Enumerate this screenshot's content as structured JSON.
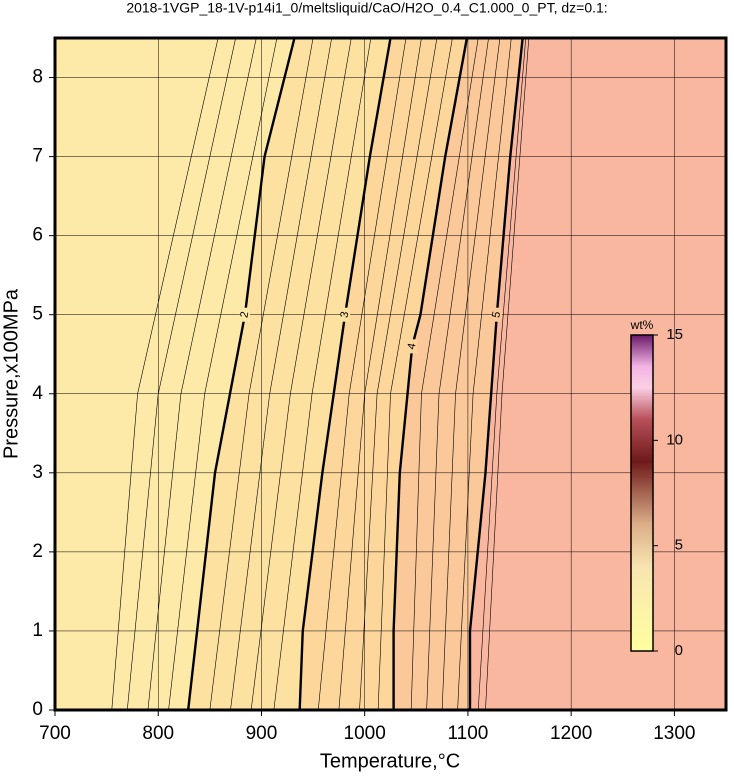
{
  "chart_data": {
    "type": "contour",
    "title": "2018-1VGP_18-1V-p14i1_0/meltsliquid/CaO/H2O_0.4_C1.000_0_PT, dz=0.1:",
    "x_label": "Temperature,°C",
    "y_label": "Pressure,x100MPa",
    "xlim": [
      700,
      1350
    ],
    "ylim": [
      0,
      8.5
    ],
    "xticks": [
      700,
      800,
      900,
      1000,
      1100,
      1200,
      1300
    ],
    "yticks": [
      0,
      1,
      2,
      3,
      4,
      5,
      6,
      7,
      8
    ],
    "grid": true,
    "background": "#f9b7a0",
    "contours": [
      {
        "level": 5,
        "fill": "#fbc899",
        "x": [
          1102,
          1102,
          1117,
          1128,
          1141,
          1153
        ],
        "y": [
          0,
          1,
          3,
          5,
          7,
          8.5
        ]
      },
      {
        "level": 4,
        "fill": "#fcd69a",
        "x": [
          1028,
          1028,
          1034,
          1046,
          1054,
          1078,
          1099
        ],
        "y": [
          0,
          1,
          3,
          4.6,
          5,
          7,
          8.5
        ]
      },
      {
        "level": 3,
        "fill": "#fde1a0",
        "x": [
          937,
          940,
          959,
          981,
          1005,
          1025
        ],
        "y": [
          0,
          1,
          3,
          5,
          7,
          8.5
        ]
      },
      {
        "level": 2,
        "fill": "#fde9a8",
        "x": [
          829,
          855,
          884,
          903,
          932
        ],
        "y": [
          0,
          3,
          5,
          7,
          8.5
        ]
      },
      {
        "level": 1.2,
        "x": [
          755,
          780,
          858
        ],
        "y": [
          0,
          4,
          8.5
        ]
      },
      {
        "level": 1.4,
        "x": [
          770,
          800,
          875
        ],
        "y": [
          0,
          4,
          8.5
        ]
      },
      {
        "level": 1.6,
        "x": [
          790,
          822,
          895
        ],
        "y": [
          0,
          4,
          8.5
        ]
      },
      {
        "level": 1.8,
        "x": [
          810,
          845,
          915
        ],
        "y": [
          0,
          4,
          8.5
        ]
      },
      {
        "level": 2.2,
        "x": [
          850,
          888,
          950
        ],
        "y": [
          0,
          4,
          8.5
        ]
      },
      {
        "level": 2.4,
        "x": [
          870,
          908,
          968
        ],
        "y": [
          0,
          4,
          8.5
        ]
      },
      {
        "level": 2.6,
        "x": [
          890,
          928,
          987
        ],
        "y": [
          0,
          4,
          8.5
        ]
      },
      {
        "level": 2.8,
        "x": [
          912,
          949,
          1006
        ],
        "y": [
          0,
          4,
          8.5
        ]
      },
      {
        "level": 3.2,
        "x": [
          955,
          985,
          1040
        ],
        "y": [
          0,
          4,
          8.5
        ]
      },
      {
        "level": 3.4,
        "x": [
          975,
          1000,
          1055
        ],
        "y": [
          0,
          4,
          8.5
        ]
      },
      {
        "level": 3.6,
        "x": [
          995,
          1012,
          1070
        ],
        "y": [
          0,
          4,
          8.5
        ]
      },
      {
        "level": 3.8,
        "x": [
          1013,
          1025,
          1085
        ],
        "y": [
          0,
          4,
          8.5
        ]
      },
      {
        "level": 4.2,
        "x": [
          1045,
          1055,
          1110
        ],
        "y": [
          0,
          4,
          8.5
        ]
      },
      {
        "level": 4.4,
        "x": [
          1060,
          1072,
          1120
        ],
        "y": [
          0,
          4,
          8.5
        ]
      },
      {
        "level": 4.6,
        "x": [
          1075,
          1088,
          1131
        ],
        "y": [
          0,
          4,
          8.5
        ]
      },
      {
        "level": 4.8,
        "x": [
          1090,
          1105,
          1142
        ],
        "y": [
          0,
          4,
          8.5
        ]
      },
      {
        "level": 5.2,
        "x": [
          1110,
          1128,
          1156
        ],
        "y": [
          0,
          4,
          8.5
        ]
      },
      {
        "level": 5.4,
        "x": [
          1117,
          1133,
          1159
        ],
        "y": [
          0,
          4,
          8.5
        ]
      }
    ],
    "colorbar": {
      "label": "wt%",
      "lim": [
        0,
        15
      ],
      "ticks": [
        0,
        5,
        10,
        15
      ],
      "colormap": [
        {
          "value": 0,
          "color": "#ffffa0"
        },
        {
          "value": 4,
          "color": "#f8e4b0"
        },
        {
          "value": 6,
          "color": "#dcae88"
        },
        {
          "value": 9,
          "color": "#6e1a1a"
        },
        {
          "value": 11,
          "color": "#b8505a"
        },
        {
          "value": 12.5,
          "color": "#fbd0e4"
        },
        {
          "value": 13.5,
          "color": "#f4b4e4"
        },
        {
          "value": 15,
          "color": "#6a1a6a"
        }
      ]
    }
  }
}
